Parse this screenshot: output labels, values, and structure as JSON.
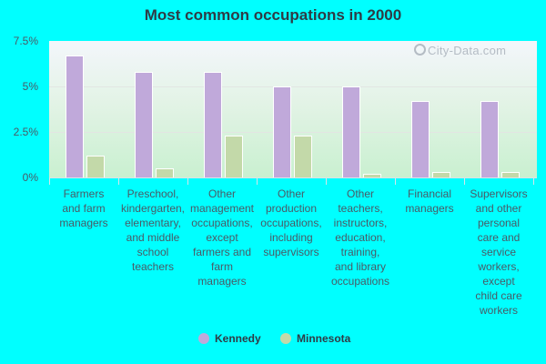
{
  "title": "Most common occupations in 2000",
  "watermark": "City-Data.com",
  "colors": {
    "kennedy": "#c0a9da",
    "minnesota": "#c3d9a9",
    "background": "#00ffff"
  },
  "y_ticks": [
    "7.5%",
    "5%",
    "2.5%",
    "0%"
  ],
  "legend": [
    {
      "label": "Kennedy",
      "color": "#c0a9da"
    },
    {
      "label": "Minnesota",
      "color": "#c3d9a9"
    }
  ],
  "categories": [
    "Farmers and farm managers",
    "Preschool, kindergarten, elementary, and middle school teachers",
    "Other management occupations, except farmers and farm managers",
    "Other production occupations, including supervisors",
    "Other teachers, instructors, education, training, and library occupations",
    "Financial managers",
    "Supervisors and other personal care and service workers, except child care workers"
  ],
  "category_lines": [
    [
      "Farmers",
      "and farm",
      "managers"
    ],
    [
      "Preschool,",
      "kindergarten,",
      "elementary,",
      "and middle",
      "school",
      "teachers"
    ],
    [
      "Other",
      "management",
      "occupations,",
      "except",
      "farmers and",
      "farm",
      "managers"
    ],
    [
      "Other",
      "production",
      "occupations,",
      "including",
      "supervisors"
    ],
    [
      "Other",
      "teachers,",
      "instructors,",
      "education,",
      "training,",
      "and library",
      "occupations"
    ],
    [
      "Financial",
      "managers"
    ],
    [
      "Supervisors",
      "and other",
      "personal",
      "care and",
      "service",
      "workers,",
      "except",
      "child care",
      "workers"
    ]
  ],
  "chart_data": {
    "type": "bar",
    "title": "Most common occupations in 2000",
    "xlabel": "",
    "ylabel": "",
    "ylim": [
      0,
      7.5
    ],
    "y_tick_values": [
      0,
      2.5,
      5,
      7.5
    ],
    "y_tick_labels": [
      "0%",
      "2.5%",
      "5%",
      "7.5%"
    ],
    "grid": true,
    "legend_position": "bottom",
    "categories": [
      "Farmers and farm managers",
      "Preschool, kindergarten, elementary, and middle school teachers",
      "Other management occupations, except farmers and farm managers",
      "Other production occupations, including supervisors",
      "Other teachers, instructors, education, training, and library occupations",
      "Financial managers",
      "Supervisors and other personal care and service workers, except child care workers"
    ],
    "series": [
      {
        "name": "Kennedy",
        "color": "#c0a9da",
        "values": [
          6.7,
          5.8,
          5.8,
          5.0,
          5.0,
          4.2,
          4.2
        ]
      },
      {
        "name": "Minnesota",
        "color": "#c3d9a9",
        "values": [
          1.2,
          0.5,
          2.3,
          2.3,
          0.2,
          0.3,
          0.3
        ]
      }
    ]
  }
}
